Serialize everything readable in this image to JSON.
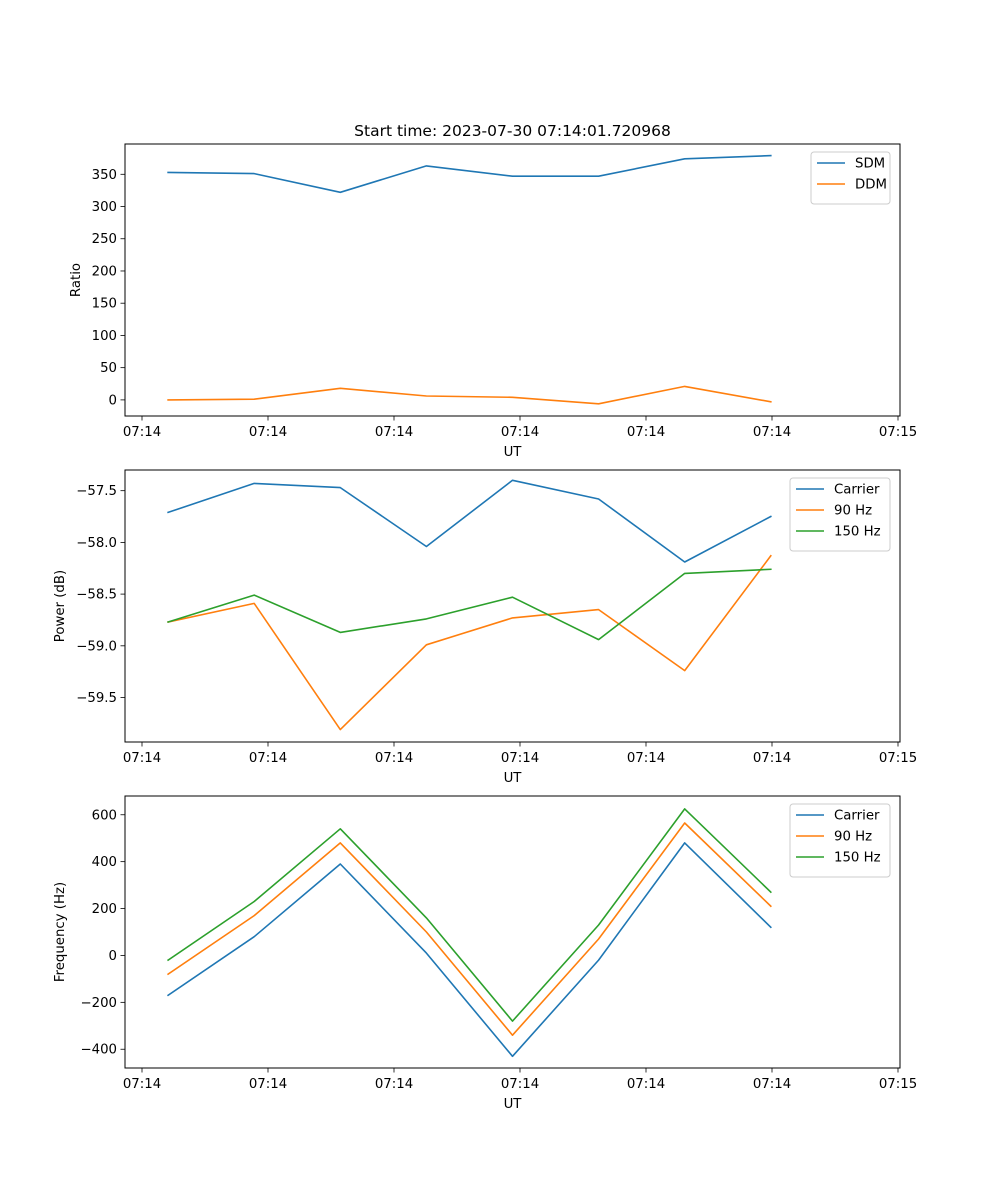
{
  "chart_data": [
    {
      "type": "line",
      "title": "Start time: 2023-07-30 07:14:01.720968",
      "xlabel": "UT",
      "ylabel": "Ratio",
      "xticks": [
        "07:14",
        "07:14",
        "07:14",
        "07:14",
        "07:14",
        "07:14",
        "07:15"
      ],
      "x": [
        1,
        2,
        3,
        4,
        5,
        6,
        7,
        8
      ],
      "xlim": [
        0.5,
        9.5
      ],
      "ylim": [
        -25,
        397
      ],
      "yticks": [
        0,
        50,
        100,
        150,
        200,
        250,
        300,
        350
      ],
      "legend_position": "top-right",
      "series": [
        {
          "name": "SDM",
          "color": "#1f77b4",
          "values": [
            353,
            351,
            322,
            363,
            347,
            347,
            374,
            379
          ]
        },
        {
          "name": "DDM",
          "color": "#ff7f0e",
          "values": [
            0,
            1,
            18,
            6,
            4,
            -6,
            21,
            -3
          ]
        }
      ]
    },
    {
      "type": "line",
      "title": "",
      "xlabel": "UT",
      "ylabel": "Power (dB)",
      "xticks": [
        "07:14",
        "07:14",
        "07:14",
        "07:14",
        "07:14",
        "07:14",
        "07:15"
      ],
      "x": [
        1,
        2,
        3,
        4,
        5,
        6,
        7,
        8
      ],
      "xlim": [
        0.5,
        9.5
      ],
      "ylim": [
        -59.93,
        -57.3
      ],
      "yticks": [
        -59.5,
        -59.0,
        -58.5,
        -58.0,
        -57.5
      ],
      "ytick_labels": [
        "−59.5",
        "−59.0",
        "−58.5",
        "−58.0",
        "−57.5"
      ],
      "legend_position": "top-right",
      "series": [
        {
          "name": "Carrier",
          "color": "#1f77b4",
          "values": [
            -57.71,
            -57.43,
            -57.47,
            -58.04,
            -57.4,
            -57.58,
            -58.19,
            -57.75
          ]
        },
        {
          "name": "90 Hz",
          "color": "#ff7f0e",
          "values": [
            -58.77,
            -58.59,
            -59.81,
            -58.99,
            -58.73,
            -58.65,
            -59.24,
            -58.13
          ]
        },
        {
          "name": "150 Hz",
          "color": "#2ca02c",
          "values": [
            -58.77,
            -58.51,
            -58.87,
            -58.74,
            -58.53,
            -58.94,
            -58.3,
            -58.26
          ]
        }
      ]
    },
    {
      "type": "line",
      "title": "",
      "xlabel": "UT",
      "ylabel": "Frequency (Hz)",
      "xticks": [
        "07:14",
        "07:14",
        "07:14",
        "07:14",
        "07:14",
        "07:14",
        "07:15"
      ],
      "x": [
        1,
        2,
        3,
        4,
        5,
        6,
        7,
        8
      ],
      "xlim": [
        0.5,
        9.5
      ],
      "ylim": [
        -480,
        680
      ],
      "yticks": [
        -400,
        -200,
        0,
        200,
        400,
        600
      ],
      "ytick_labels": [
        "−400",
        "−200",
        "0",
        "200",
        "400",
        "600"
      ],
      "legend_position": "top-right",
      "series": [
        {
          "name": "Carrier",
          "color": "#1f77b4",
          "values": [
            -170,
            80,
            390,
            10,
            -430,
            -20,
            480,
            120
          ]
        },
        {
          "name": "90 Hz",
          "color": "#ff7f0e",
          "values": [
            -80,
            170,
            480,
            100,
            -340,
            70,
            565,
            210
          ]
        },
        {
          "name": "150 Hz",
          "color": "#2ca02c",
          "values": [
            -20,
            230,
            540,
            160,
            -280,
            130,
            625,
            270
          ]
        }
      ]
    }
  ]
}
